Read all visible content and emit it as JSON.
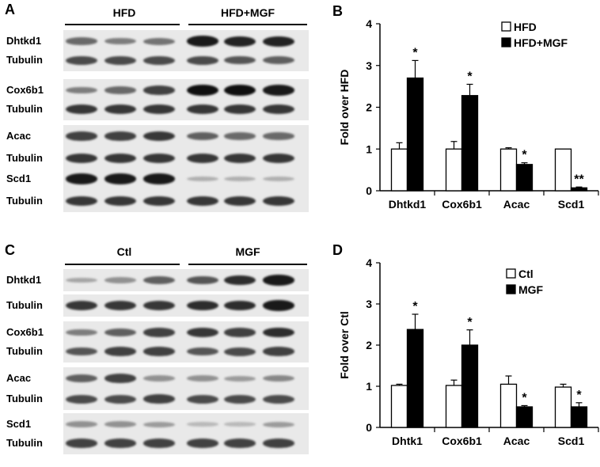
{
  "panels": {
    "A": "A",
    "B": "B",
    "C": "C",
    "D": "D"
  },
  "blot_A": {
    "group_left": "HFD",
    "group_right": "HFD+MGF",
    "rows": [
      {
        "label": "Dhtkd1",
        "bands": [
          0.55,
          0.45,
          0.5,
          0.95,
          0.9,
          0.9
        ]
      },
      {
        "label": "Tubulin",
        "bands": [
          0.7,
          0.7,
          0.7,
          0.7,
          0.65,
          0.6
        ]
      },
      {
        "label": "Cox6b1",
        "bands": [
          0.45,
          0.55,
          0.75,
          1.0,
          1.0,
          0.95
        ]
      },
      {
        "label": "Tubulin",
        "bands": [
          0.8,
          0.8,
          0.8,
          0.8,
          0.8,
          0.8
        ]
      },
      {
        "label": "Acac",
        "bands": [
          0.75,
          0.75,
          0.8,
          0.6,
          0.55,
          0.55
        ]
      },
      {
        "label": "Tubulin",
        "bands": [
          0.8,
          0.8,
          0.8,
          0.8,
          0.8,
          0.8
        ]
      },
      {
        "label": "Scd1",
        "bands": [
          0.95,
          0.95,
          0.95,
          0.2,
          0.2,
          0.2
        ]
      },
      {
        "label": "Tubulin",
        "bands": [
          0.8,
          0.8,
          0.8,
          0.8,
          0.8,
          0.8
        ]
      }
    ]
  },
  "blot_C": {
    "group_left": "Ctl",
    "group_right": "MGF",
    "rows": [
      {
        "label": "Dhtkd1",
        "bands": [
          0.25,
          0.35,
          0.6,
          0.65,
          0.85,
          0.95
        ]
      },
      {
        "label": "Tubulin",
        "bands": [
          0.8,
          0.8,
          0.8,
          0.85,
          0.85,
          0.95
        ]
      },
      {
        "label": "Cox6b1",
        "bands": [
          0.45,
          0.6,
          0.75,
          0.8,
          0.75,
          0.85
        ]
      },
      {
        "label": "Tubulin",
        "bands": [
          0.65,
          0.75,
          0.75,
          0.65,
          0.7,
          0.75
        ]
      },
      {
        "label": "Acac",
        "bands": [
          0.6,
          0.75,
          0.35,
          0.35,
          0.3,
          0.4
        ]
      },
      {
        "label": "Tubulin",
        "bands": [
          0.7,
          0.7,
          0.75,
          0.7,
          0.7,
          0.7
        ]
      },
      {
        "label": "Scd1",
        "bands": [
          0.35,
          0.35,
          0.3,
          0.15,
          0.15,
          0.3
        ]
      },
      {
        "label": "Tubulin",
        "bands": [
          0.75,
          0.75,
          0.75,
          0.75,
          0.75,
          0.75
        ]
      }
    ]
  },
  "chart_data": [
    {
      "type": "bar",
      "ylabel": "Fold over HFD",
      "ylim": [
        0,
        4
      ],
      "yticks": [
        "0",
        "1",
        "2",
        "3",
        "4"
      ],
      "categories": [
        "Dhtkd1",
        "Cox6b1",
        "Acac",
        "Scd1"
      ],
      "legend_position": "top-right",
      "series": [
        {
          "name": "HFD",
          "fill": "#ffffff",
          "values": [
            1.0,
            1.0,
            1.0,
            1.0
          ],
          "errors": [
            0.15,
            0.18,
            0.03,
            0.0
          ]
        },
        {
          "name": "HFD+MGF",
          "fill": "#000000",
          "values": [
            2.7,
            2.28,
            0.63,
            0.07
          ],
          "errors": [
            0.42,
            0.27,
            0.04,
            0.02
          ]
        }
      ],
      "annotations": [
        "*",
        "*",
        "*",
        "**"
      ]
    },
    {
      "type": "bar",
      "ylabel": "Fold over Ctl",
      "ylim": [
        0,
        4
      ],
      "yticks": [
        "0",
        "1",
        "2",
        "3",
        "4"
      ],
      "categories": [
        "Dhtk1",
        "Cox6b1",
        "Acac",
        "Scd1"
      ],
      "legend_position": "top-right",
      "series": [
        {
          "name": "Ctl",
          "fill": "#ffffff",
          "values": [
            1.02,
            1.02,
            1.05,
            0.98
          ],
          "errors": [
            0.03,
            0.13,
            0.2,
            0.07
          ]
        },
        {
          "name": "MGF",
          "fill": "#000000",
          "values": [
            2.38,
            2.0,
            0.5,
            0.5
          ],
          "errors": [
            0.37,
            0.37,
            0.03,
            0.1
          ]
        }
      ],
      "annotations": [
        "*",
        "*",
        "*",
        "*"
      ]
    }
  ]
}
